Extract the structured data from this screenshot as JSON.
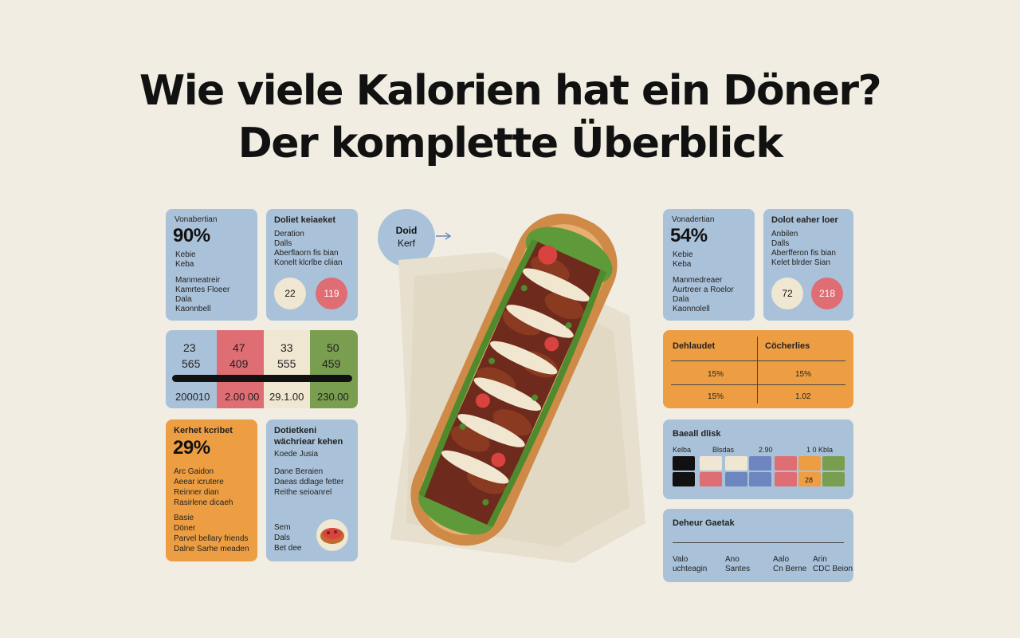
{
  "title": {
    "line1": "Wie viele Kalorien hat ein Döner?",
    "line2": "Der komplette Überblick"
  },
  "bubble": {
    "label1": "Doid",
    "label2": "Kerf"
  },
  "left": {
    "card1": {
      "heading": "Vonabertian",
      "percent": "90%",
      "l1": "Kebie",
      "l2": "Keba",
      "l3": "Manmeatreir",
      "l4": "Kamrtes Floeer",
      "l5": "Dala",
      "l6": "Kaonnbell"
    },
    "card2": {
      "heading": "Doliet keiaeket",
      "l1": "Deration",
      "l2": "Dalls",
      "l3": "Aberflaorn fis bian",
      "l4": "Konelt klcrlbe cliian",
      "circle1": "22",
      "circle2": "119"
    },
    "grid": {
      "row1": [
        "23",
        "47",
        "33",
        "50"
      ],
      "row2": [
        "565",
        "409",
        "555",
        "459"
      ],
      "row3": [
        "200010",
        "2.00 00",
        "29.1.00",
        "230.00"
      ],
      "colors": [
        "#a9c2d9",
        "#df6d74",
        "#efe7d2",
        "#7a9e4f"
      ]
    },
    "card3": {
      "heading": "Kerhet kcribet",
      "percent": "29%",
      "l1": "Arc Gaidon",
      "l2": "Aeear icrutere",
      "l3": "Reinner dian",
      "l4": "Rasirlene dicaeh",
      "l5": "Basie",
      "l6": "Döner",
      "l7": "Parvel bellary friends",
      "l8": "Dalne Sarhe meaden"
    },
    "card4": {
      "heading1": "Dotietkeni",
      "heading2": "wächriear kehen",
      "l1": "Koede Jusia",
      "l2": "Dane Beraien",
      "l3": "Daeas ddlage fetter",
      "l4": "Reithe seioanrel",
      "l5": "Sem",
      "l6": "Dals",
      "l7": "Bet dee"
    }
  },
  "right": {
    "card1": {
      "heading": "Vonadertian",
      "percent": "54%",
      "l1": "Kebie",
      "l2": "Keba",
      "l3": "Manmedreaer",
      "l4": "Aurtreer a Roelor",
      "l5": "Dala",
      "l6": "Kaonnolell"
    },
    "card2": {
      "heading": "Dolot eaher loer",
      "l1": "Anbilen",
      "l2": "Dalls",
      "l3": "Aberfferon fis bian",
      "l4": "Kelet blrder Sian",
      "circle1": "72",
      "circle2": "218"
    },
    "table": {
      "h1": "Dehlaudet",
      "h2": "Cöcherlies",
      "r1c1": "15%",
      "r1c2": "15%",
      "r2c1": "15%",
      "r2c2": "1.02"
    },
    "card3": {
      "heading": "Baeall dlisk",
      "h1": "Kelba",
      "h2": "Blsdas",
      "h3": "2.90",
      "h4": "1 0 Kbla",
      "swatch_colors": [
        "#111111",
        "#df6d74",
        "#6e86c0",
        "#df6d74",
        "#ee9e42",
        "#7a9e4f"
      ],
      "v1": "28"
    },
    "card4": {
      "heading": "Deheur Gaetak",
      "c1a": "Valo",
      "c1b": "uchteagin",
      "c2a": "Ano",
      "c2b": "Santes",
      "c3a": "Aalo",
      "c3b": "Cn Berne",
      "c4a": "Arin",
      "c4b": "CDC Beion"
    }
  }
}
